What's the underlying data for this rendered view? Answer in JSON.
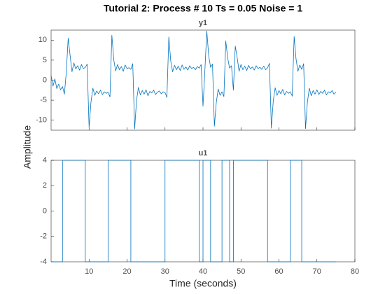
{
  "figure": {
    "title": "Tutorial 2: Process # 10  Ts = 0.05  Noise =  1",
    "xlabel": "Time (seconds)",
    "ylabel": "Amplitude"
  },
  "chart_data": [
    {
      "type": "line",
      "title": "y1",
      "color": "#0072bd",
      "x": [
        0,
        0.5,
        1,
        1.5,
        2,
        2.5,
        3,
        3.5,
        4,
        4.5,
        5,
        5.5,
        6,
        6.5,
        7,
        7.5,
        8,
        8.5,
        9,
        9.5,
        10,
        10.5,
        11,
        11.5,
        12,
        12.5,
        13,
        13.5,
        14,
        14.5,
        15,
        15.5,
        16,
        16.5,
        17,
        17.5,
        18,
        18.5,
        19,
        19.5,
        20,
        20.5,
        21,
        21.5,
        22,
        22.5,
        23,
        23.5,
        24,
        24.5,
        25,
        25.5,
        26,
        26.5,
        27,
        27.5,
        28,
        28.5,
        29,
        29.5,
        30,
        30.5,
        31,
        31.5,
        32,
        32.5,
        33,
        33.5,
        34,
        34.5,
        35,
        35.5,
        36,
        36.5,
        37,
        37.5,
        38,
        38.5,
        39,
        39.5,
        40,
        40.5,
        41,
        41.5,
        42,
        42.5,
        43,
        43.5,
        44,
        44.5,
        45,
        45.5,
        46,
        46.5,
        47,
        47.5,
        48,
        48.5,
        49,
        49.5,
        50,
        50.5,
        51,
        51.5,
        52,
        52.5,
        53,
        53.5,
        54,
        54.5,
        55,
        55.5,
        56,
        56.5,
        57,
        57.5,
        58,
        58.5,
        59,
        59.5,
        60,
        60.5,
        61,
        61.5,
        62,
        62.5,
        63,
        63.5,
        64,
        64.5,
        65,
        65.5,
        66,
        66.5,
        67,
        67.5,
        68,
        68.5,
        69,
        69.5,
        70,
        70.5,
        71,
        71.5,
        72,
        72.5,
        73,
        73.5,
        74,
        74.5,
        75
      ],
      "values": [
        1.2,
        -1.5,
        0.3,
        -2.1,
        -1.0,
        -2.4,
        -1.6,
        -3.5,
        2.0,
        10.5,
        6.2,
        2.1,
        4.3,
        2.8,
        3.6,
        2.5,
        3.9,
        2.9,
        3.2,
        4.0,
        -11.8,
        -5.5,
        -2.0,
        -3.8,
        -2.7,
        -3.4,
        -2.5,
        -3.6,
        -2.9,
        -3.3,
        -3.0,
        -4.2,
        11.2,
        5.1,
        2.3,
        3.9,
        2.6,
        3.4,
        2.2,
        3.8,
        2.9,
        3.1,
        2.7,
        4.1,
        -12.2,
        -5.0,
        -1.8,
        -3.7,
        -2.6,
        -3.5,
        -2.4,
        -3.9,
        -2.8,
        -3.2,
        -2.5,
        -3.6,
        -3.0,
        -2.7,
        -3.4,
        -2.9,
        -3.1,
        -4.3,
        10.8,
        4.8,
        2.1,
        3.7,
        2.6,
        3.5,
        2.4,
        3.8,
        2.7,
        3.3,
        2.5,
        3.6,
        2.9,
        3.2,
        2.6,
        3.4,
        3.0,
        3.9,
        -6.5,
        2.5,
        12.3,
        6.1,
        3.2,
        4.0,
        -11.5,
        -5.6,
        -2.2,
        -3.8,
        -2.9,
        -4.1,
        9.8,
        5.5,
        3.0,
        3.6,
        -2.5,
        8.5,
        5.6,
        2.2,
        3.9,
        2.6,
        3.5,
        2.4,
        3.7,
        2.8,
        3.3,
        2.5,
        3.6,
        2.9,
        3.2,
        2.7,
        3.5,
        2.6,
        3.1,
        4.2,
        -12.0,
        -5.2,
        -1.9,
        -3.8,
        -2.6,
        -3.4,
        -2.3,
        -3.7,
        -2.8,
        -3.3,
        -2.9,
        -4.0,
        10.9,
        5.3,
        2.2,
        3.8,
        2.7,
        4.1,
        -12.1,
        -5.4,
        -2.0,
        -3.9,
        -2.6,
        -3.5,
        -2.4,
        -3.6,
        -2.8,
        -3.3,
        -2.5,
        -3.7,
        -2.9,
        -3.2,
        -2.6,
        -3.5,
        -3.0
      ],
      "xlim": [
        0,
        80
      ],
      "xticks": [
        10,
        20,
        30,
        40,
        50,
        60,
        70,
        80
      ],
      "show_xticklabels": false,
      "ylim": [
        -12.5,
        12.5
      ],
      "yticks": [
        -10,
        -5,
        0,
        5,
        10
      ],
      "grid": false
    },
    {
      "type": "stairs",
      "title": "u1",
      "color": "#0072bd",
      "x": [
        0,
        3,
        9,
        15,
        21,
        30,
        39,
        40,
        42,
        45,
        47,
        48,
        57,
        63,
        66,
        75
      ],
      "values": [
        -4,
        4,
        -4,
        4,
        -4,
        4,
        -4,
        4,
        -4,
        4,
        -4,
        4,
        -4,
        4,
        -4,
        -4
      ],
      "xlim": [
        0,
        80
      ],
      "xticks": [
        10,
        20,
        30,
        40,
        50,
        60,
        70,
        80
      ],
      "show_xticklabels": true,
      "ylim": [
        -4,
        4
      ],
      "yticks": [
        -4,
        -2,
        0,
        2,
        4
      ],
      "grid": false
    }
  ]
}
